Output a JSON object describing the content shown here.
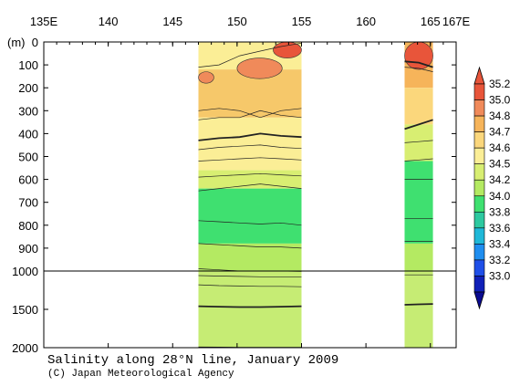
{
  "chart_data": {
    "type": "heatmap",
    "title": "Salinity along 28°N line, January 2009",
    "credit": "(C) Japan Meteorological Agency",
    "depth_unit_label": "(m)",
    "x_ticks": [
      {
        "value": 135,
        "label": "135E"
      },
      {
        "value": 140,
        "label": "140"
      },
      {
        "value": 145,
        "label": "145"
      },
      {
        "value": 150,
        "label": "150"
      },
      {
        "value": 155,
        "label": "155"
      },
      {
        "value": 160,
        "label": "160"
      },
      {
        "value": 165,
        "label": "165"
      },
      {
        "value": 167,
        "label": "167E"
      }
    ],
    "upper_depth_ticks": [
      {
        "value": 0,
        "label": "0"
      },
      {
        "value": 100,
        "label": "100"
      },
      {
        "value": 200,
        "label": "200"
      },
      {
        "value": 300,
        "label": "300"
      },
      {
        "value": 400,
        "label": "400"
      },
      {
        "value": 500,
        "label": "500"
      },
      {
        "value": 600,
        "label": "600"
      },
      {
        "value": 700,
        "label": "700"
      },
      {
        "value": 800,
        "label": "800"
      },
      {
        "value": 900,
        "label": "900"
      },
      {
        "value": 1000,
        "label": "1000"
      }
    ],
    "lower_depth_ticks": [
      {
        "value": 1500,
        "label": "1500"
      },
      {
        "value": 2000,
        "label": "2000"
      }
    ],
    "xlim": [
      135,
      167
    ],
    "depth_break": 1000,
    "ylim": [
      0,
      2000
    ],
    "colorbar": {
      "levels": [
        {
          "label": "35.2",
          "color": "#e8553a"
        },
        {
          "label": "35.0",
          "color": "#f08a5a"
        },
        {
          "label": "34.8",
          "color": "#f6b45a"
        },
        {
          "label": "34.7",
          "color": "#fbd77c"
        },
        {
          "label": "34.6",
          "color": "#fbee96"
        },
        {
          "label": "34.5",
          "color": "#d8ee72"
        },
        {
          "label": "34.2",
          "color": "#b4ea62"
        },
        {
          "label": "34.0",
          "color": "#3fe070"
        },
        {
          "label": "33.8",
          "color": "#2dc9a0"
        },
        {
          "label": "33.6",
          "color": "#1fb8d8"
        },
        {
          "label": "33.4",
          "color": "#1f8ef0"
        },
        {
          "label": "33.2",
          "color": "#1f4fe8"
        },
        {
          "label": "33.0",
          "color": "#1020b8"
        }
      ],
      "top_color": "#e8553a",
      "bottom_color": "#0a0a90"
    },
    "sections": [
      {
        "lon_start": 147.0,
        "lon_end": 155.0,
        "layers": [
          {
            "from": 0,
            "to": 120,
            "value": 34.75,
            "color": "#fbee96"
          },
          {
            "from": 120,
            "to": 330,
            "value": 34.75,
            "color": "#f6c86a"
          },
          {
            "from": 330,
            "to": 560,
            "value": 34.55,
            "color": "#fbee96"
          },
          {
            "from": 560,
            "to": 640,
            "value": 34.35,
            "color": "#d8ee72"
          },
          {
            "from": 640,
            "to": 880,
            "value": 34.05,
            "color": "#3fe070"
          },
          {
            "from": 880,
            "to": 1000,
            "value": 34.2,
            "color": "#b4ea62"
          },
          {
            "from": 1000,
            "to": 2000,
            "value": 34.3,
            "color": "#c6ec74"
          }
        ],
        "patches": [
          {
            "lon_start": 152.8,
            "lon_end": 155.0,
            "from": 0,
            "to": 70,
            "value": 34.9,
            "color": "#e8553a"
          },
          {
            "lon_start": 150.0,
            "lon_end": 153.5,
            "from": 70,
            "to": 160,
            "value": 34.9,
            "color": "#f08a5a"
          },
          {
            "lon_start": 147.0,
            "lon_end": 148.2,
            "from": 130,
            "to": 180,
            "value": 34.9,
            "color": "#f08a5a"
          }
        ],
        "contours": [
          {
            "depths": [
              110,
              100,
              60,
              40,
              20,
              5
            ],
            "bold": false
          },
          {
            "depths": [
              300,
              290,
              300,
              330,
              300,
              290
            ],
            "bold": false
          },
          {
            "depths": [
              340,
              330,
              330,
              300,
              320,
              330
            ],
            "bold": false
          },
          {
            "depths": [
              430,
              420,
              415,
              400,
              410,
              415
            ],
            "bold": true
          },
          {
            "depths": [
              470,
              460,
              455,
              450,
              460,
              465
            ],
            "bold": false
          },
          {
            "depths": [
              520,
              515,
              510,
              505,
              510,
              515
            ],
            "bold": false
          },
          {
            "depths": [
              590,
              585,
              580,
              575,
              580,
              585
            ],
            "bold": false
          },
          {
            "depths": [
              650,
              640,
              630,
              620,
              630,
              640
            ],
            "bold": false
          },
          {
            "depths": [
              780,
              785,
              790,
              795,
              790,
              800
            ],
            "bold": false
          },
          {
            "depths": [
              880,
              885,
              890,
              895,
              895,
              900
            ],
            "bold": false
          },
          {
            "depths": [
              990,
              995,
              1000,
              1000,
              1000,
              1005
            ],
            "bold": false
          },
          {
            "depths": [
              1060,
              1065,
              1070,
              1075,
              1075,
              1080
            ],
            "bold": false
          },
          {
            "depths": [
              1180,
              1190,
              1195,
              1200,
              1200,
              1205
            ],
            "bold": false
          },
          {
            "depths": [
              1460,
              1465,
              1470,
              1470,
              1465,
              1460
            ],
            "bold": true
          },
          {
            "depths": [
              1990,
              1992,
              1995,
              1995,
              1995,
              1995
            ],
            "bold": false
          }
        ]
      },
      {
        "lon_start": 163.0,
        "lon_end": 165.2,
        "layers": [
          {
            "from": 0,
            "to": 200,
            "value": 34.8,
            "color": "#f6b45a"
          },
          {
            "from": 200,
            "to": 360,
            "value": 34.65,
            "color": "#fbd77c"
          },
          {
            "from": 360,
            "to": 520,
            "value": 34.45,
            "color": "#d8ee72"
          },
          {
            "from": 520,
            "to": 880,
            "value": 34.05,
            "color": "#3fe070"
          },
          {
            "from": 880,
            "to": 1000,
            "value": 34.2,
            "color": "#b4ea62"
          },
          {
            "from": 1000,
            "to": 2000,
            "value": 34.3,
            "color": "#c6ec74"
          }
        ],
        "patches": [
          {
            "lon_start": 163.0,
            "lon_end": 165.2,
            "from": 0,
            "to": 120,
            "value": 35.0,
            "color": "#e8553a"
          }
        ],
        "contours": [
          {
            "depths": [
              85,
              90,
              110
            ],
            "bold": true
          },
          {
            "depths": [
              110,
              115,
              130
            ],
            "bold": false
          },
          {
            "depths": [
              380,
              360,
              340
            ],
            "bold": true
          },
          {
            "depths": [
              440,
              435,
              430
            ],
            "bold": false
          },
          {
            "depths": [
              520,
              515,
              510
            ],
            "bold": false
          },
          {
            "depths": [
              600,
              600,
              600
            ],
            "bold": false
          },
          {
            "depths": [
              770,
              770,
              770
            ],
            "bold": false
          },
          {
            "depths": [
              870,
              870,
              870
            ],
            "bold": false
          },
          {
            "depths": [
              1050,
              1050,
              1050
            ],
            "bold": false
          },
          {
            "depths": [
              1440,
              1435,
              1430
            ],
            "bold": true
          }
        ]
      }
    ],
    "gridlines": false,
    "legend_position": "right"
  }
}
